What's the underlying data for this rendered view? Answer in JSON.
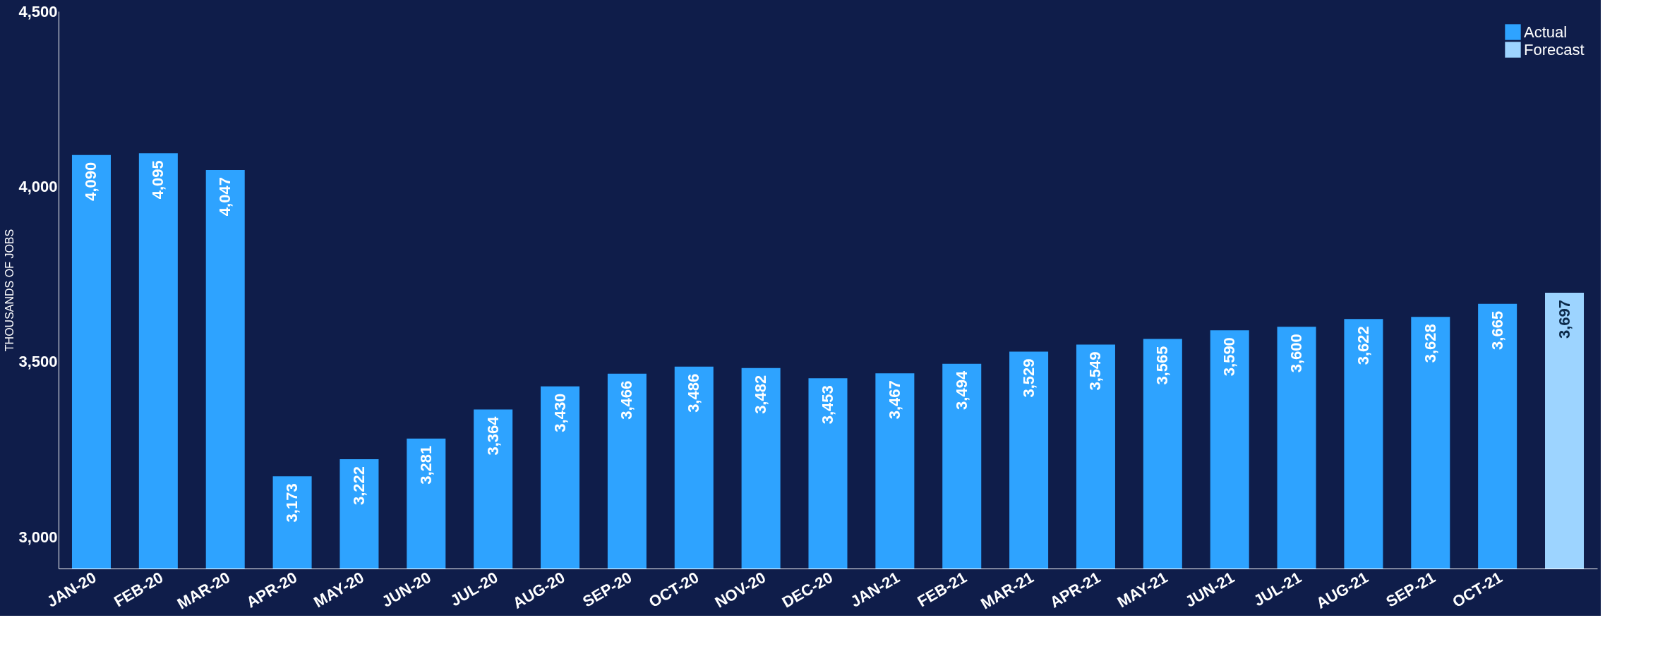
{
  "chart_data": {
    "type": "bar",
    "ylabel": "THOUSANDS OF JOBS",
    "categories": [
      "JAN-20",
      "FEB-20",
      "MAR-20",
      "APR-20",
      "MAY-20",
      "JUN-20",
      "JUL-20",
      "AUG-20",
      "SEP-20",
      "OCT-20",
      "NOV-20",
      "DEC-20",
      "JAN-21",
      "FEB-21",
      "MAR-21",
      "APR-21",
      "MAY-21",
      "JUN-21",
      "JUL-21",
      "AUG-21",
      "SEP-21",
      "OCT-21",
      null
    ],
    "series": [
      {
        "name": "Actual",
        "color": "#2ea3ff",
        "values": [
          4090,
          4095,
          4047,
          3173,
          3222,
          3281,
          3364,
          3430,
          3466,
          3486,
          3482,
          3453,
          3467,
          3494,
          3529,
          3549,
          3565,
          3590,
          3600,
          3622,
          3628,
          3665,
          null
        ],
        "value_labels": [
          "4,090",
          "4,095",
          "4,047",
          "3,173",
          "3,222",
          "3,281",
          "3,364",
          "3,430",
          "3,466",
          "3,486",
          "3,482",
          "3,453",
          "3,467",
          "3,494",
          "3,529",
          "3,549",
          "3,565",
          "3,590",
          "3,600",
          "3,622",
          "3,628",
          "3,665",
          null
        ]
      },
      {
        "name": "Forecast",
        "color": "#9dd4ff",
        "values": [
          null,
          null,
          null,
          null,
          null,
          null,
          null,
          null,
          null,
          null,
          null,
          null,
          null,
          null,
          null,
          null,
          null,
          null,
          null,
          null,
          null,
          null,
          3697
        ],
        "value_labels": [
          null,
          null,
          null,
          null,
          null,
          null,
          null,
          null,
          null,
          null,
          null,
          null,
          null,
          null,
          null,
          null,
          null,
          null,
          null,
          null,
          null,
          null,
          "3,697"
        ]
      }
    ],
    "ylim": [
      2910,
      4500
    ],
    "yticks": [
      {
        "value": 3000,
        "label": "3,000"
      },
      {
        "value": 3500,
        "label": "3,500"
      },
      {
        "value": 4000,
        "label": "4,000"
      },
      {
        "value": 4500,
        "label": "4,500"
      }
    ],
    "grid": false,
    "legend": "top right"
  }
}
